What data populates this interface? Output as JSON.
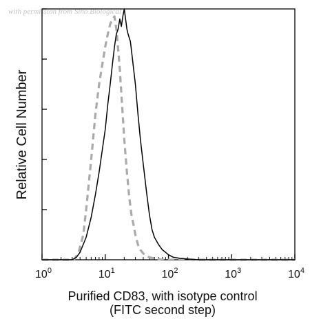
{
  "watermark": "with permission from Sino Biological",
  "chart_data": {
    "type": "line",
    "xscale": "log",
    "xlim": [
      1,
      10000
    ],
    "ylim": [
      0,
      100
    ],
    "grid": false,
    "legend": "none",
    "ylabel": "Relative Cell Number",
    "xlabel": [
      "Purified CD83, with isotype control",
      "(FITC second step)"
    ],
    "xticks": [
      {
        "base": "10",
        "exp": "0",
        "value": 1
      },
      {
        "base": "10",
        "exp": "1",
        "value": 10
      },
      {
        "base": "10",
        "exp": "2",
        "value": 100
      },
      {
        "base": "10",
        "exp": "3",
        "value": 1000
      },
      {
        "base": "10",
        "exp": "4",
        "value": 10000
      }
    ],
    "yticks": [
      0,
      20,
      40,
      60,
      80,
      100
    ],
    "series": [
      {
        "style": "solid",
        "color": "#000000",
        "x": [
          1,
          3.0,
          3.5,
          4.0,
          5.0,
          6.0,
          7.0,
          8.0,
          9.0,
          10.0,
          11.0,
          12.0,
          13.0,
          14.0,
          15.0,
          16.0,
          17.0,
          18.0,
          19.0,
          20.0,
          21.0,
          22.0,
          23.0,
          25.0,
          27.0,
          30.0,
          33.0,
          36.0,
          40.0,
          45.0,
          50.0,
          55.0,
          60.0,
          70.0,
          80.0,
          90.0,
          100,
          120,
          150,
          200,
          300,
          10000
        ],
        "y": [
          0,
          0,
          1,
          3,
          9,
          17,
          26,
          35,
          44,
          52,
          62,
          70,
          78,
          85,
          90,
          92,
          96,
          93,
          97,
          100,
          96,
          92,
          90,
          87,
          80,
          70,
          58,
          48,
          38,
          27,
          18,
          12,
          9,
          6,
          4,
          3,
          2,
          1,
          0.6,
          0.3,
          0,
          0
        ]
      },
      {
        "style": "dashed",
        "color": "#aaaaaa",
        "x": [
          1,
          3.2,
          3.8,
          4.5,
          5.0,
          6.0,
          7.0,
          8.0,
          9.0,
          10.0,
          11.0,
          12.0,
          13.0,
          14.0,
          15.0,
          16.0,
          17.0,
          18.0,
          19.0,
          20.0,
          22.0,
          24.0,
          26.0,
          28.0,
          30.0,
          33.0,
          36.0,
          40.0,
          45.0,
          50.0,
          60.0,
          80.0,
          100,
          10000
        ],
        "y": [
          0,
          0,
          3,
          10,
          20,
          40,
          58,
          70,
          78,
          85,
          90,
          94,
          96,
          97,
          92,
          84,
          76,
          66,
          57,
          48,
          35,
          25,
          18,
          14,
          10,
          6,
          4,
          2.5,
          1.5,
          1,
          0.5,
          0,
          0,
          0
        ]
      }
    ]
  }
}
